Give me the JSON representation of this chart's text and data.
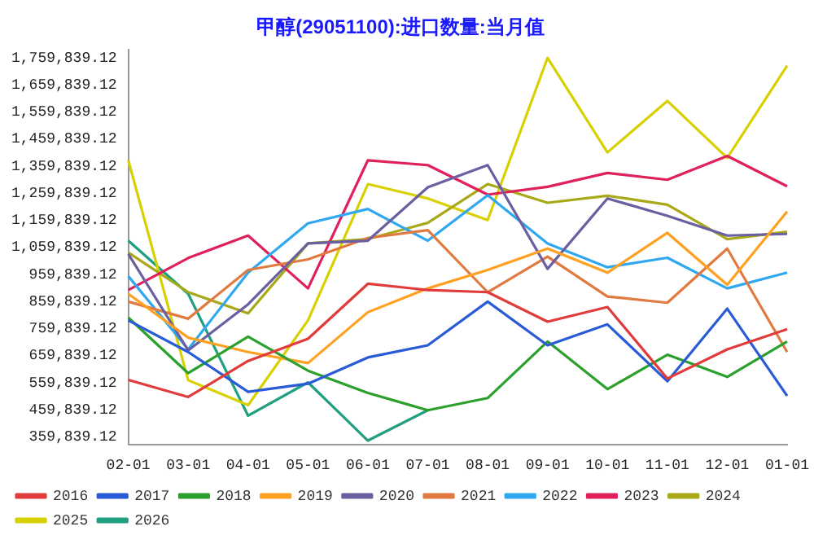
{
  "chart_data": {
    "type": "line",
    "title": "甲醇(29051100):进口数量:当月值",
    "categories": [
      "02-01",
      "03-01",
      "04-01",
      "05-01",
      "06-01",
      "07-01",
      "08-01",
      "09-01",
      "10-01",
      "11-01",
      "12-01",
      "01-01"
    ],
    "ylim": [
      329839.12,
      1789839.12
    ],
    "yticks": [
      {
        "value": 359839.12,
        "label": "359,839.12"
      },
      {
        "value": 459839.12,
        "label": "459,839.12"
      },
      {
        "value": 559839.12,
        "label": "559,839.12"
      },
      {
        "value": 659839.12,
        "label": "659,839.12"
      },
      {
        "value": 759839.12,
        "label": "759,839.12"
      },
      {
        "value": 859839.12,
        "label": "859,839.12"
      },
      {
        "value": 959839.12,
        "label": "959,839.12"
      },
      {
        "value": 1059839.12,
        "label": "1,059,839.12"
      },
      {
        "value": 1159839.12,
        "label": "1,159,839.12"
      },
      {
        "value": 1259839.12,
        "label": "1,259,839.12"
      },
      {
        "value": 1359839.12,
        "label": "1,359,839.12"
      },
      {
        "value": 1459839.12,
        "label": "1,459,839.12"
      },
      {
        "value": 1559839.12,
        "label": "1,559,839.12"
      },
      {
        "value": 1659839.12,
        "label": "1,659,839.12"
      },
      {
        "value": 1759839.12,
        "label": "1,759,839.12"
      }
    ],
    "grid": false,
    "legend": "bottom",
    "marker": "none",
    "line_style": "solid",
    "series": [
      {
        "name": "2016",
        "color": "#e03c3c",
        "values": [
          570000,
          507000,
          640000,
          722000,
          925000,
          902000,
          894000,
          785000,
          839000,
          575000,
          683000,
          757000
        ]
      },
      {
        "name": "2017",
        "color": "#2a5bd7",
        "values": [
          790000,
          673000,
          526000,
          556000,
          653000,
          698000,
          859000,
          698000,
          775000,
          565000,
          833000,
          511000
        ]
      },
      {
        "name": "2018",
        "color": "#2ca02c",
        "values": [
          800000,
          595000,
          730000,
          604000,
          522000,
          458000,
          503000,
          712000,
          536000,
          663000,
          581000,
          712000
        ]
      },
      {
        "name": "2019",
        "color": "#ffa020",
        "values": [
          888000,
          726000,
          673000,
          632000,
          820000,
          908000,
          976000,
          1055000,
          966000,
          1113000,
          921000,
          1192000
        ]
      },
      {
        "name": "2020",
        "color": "#6a5fa0",
        "values": [
          1035000,
          679000,
          849000,
          1074000,
          1084000,
          1281000,
          1363000,
          980000,
          1240000,
          1176000,
          1103000,
          1109000
        ]
      },
      {
        "name": "2021",
        "color": "#e07a40",
        "values": [
          859000,
          796000,
          976000,
          1015000,
          1094000,
          1123000,
          894000,
          1025000,
          878000,
          855000,
          1055000,
          673000
        ]
      },
      {
        "name": "2022",
        "color": "#30a8f0",
        "values": [
          953000,
          683000,
          966000,
          1148000,
          1201000,
          1084000,
          1252000,
          1074000,
          986000,
          1021000,
          908000,
          966000
        ]
      },
      {
        "name": "2023",
        "color": "#e0205a",
        "values": [
          902000,
          1020000,
          1103000,
          908000,
          1381000,
          1363000,
          1254000,
          1283000,
          1334000,
          1309000,
          1397000,
          1285000
        ]
      },
      {
        "name": "2024",
        "color": "#a8a818",
        "values": [
          1040000,
          894000,
          816000,
          1074000,
          1090000,
          1150000,
          1293000,
          1224000,
          1250000,
          1217000,
          1090000,
          1117000
        ]
      },
      {
        "name": "2025",
        "color": "#d8d000",
        "values": [
          1381000,
          569000,
          477000,
          790000,
          1293000,
          1240000,
          1160000,
          1759000,
          1410000,
          1600000,
          1390000,
          1730000
        ]
      },
      {
        "name": "2026",
        "color": "#20a080",
        "values": [
          1084000,
          888000,
          438000,
          561000,
          346000,
          458000,
          null,
          null,
          null,
          null,
          null,
          null
        ]
      }
    ]
  }
}
